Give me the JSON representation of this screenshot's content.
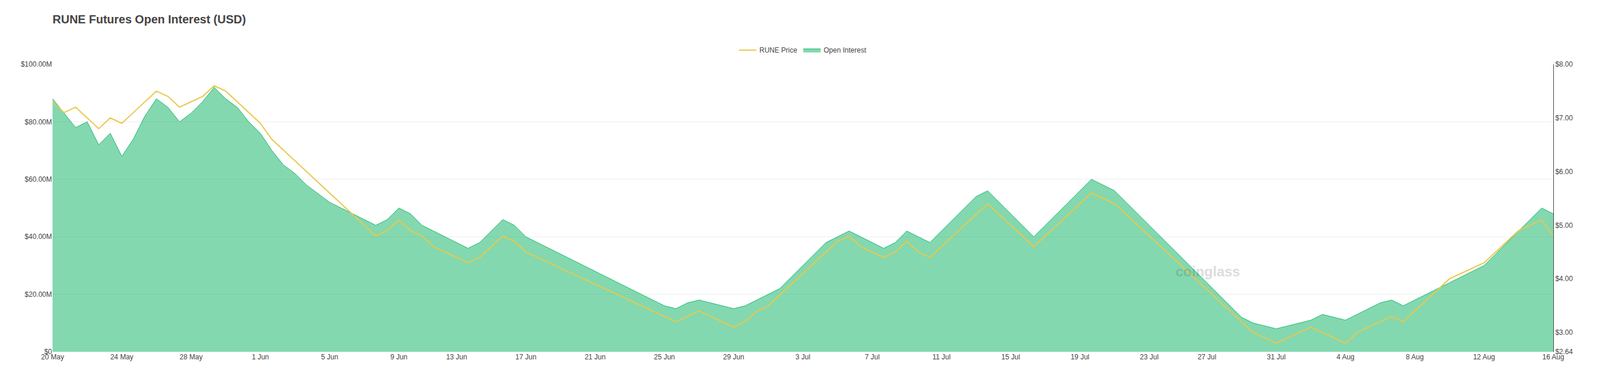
{
  "chart_data": {
    "type": "line",
    "title": "RUNE Futures Open Interest (USD)",
    "categories": [
      "20 May",
      null,
      null,
      null,
      null,
      null,
      "24 May",
      null,
      null,
      null,
      null,
      null,
      "28 May",
      null,
      null,
      null,
      null,
      null,
      "1 Jun",
      null,
      null,
      null,
      null,
      null,
      "5 Jun",
      null,
      null,
      null,
      null,
      null,
      "9 Jun",
      null,
      null,
      null,
      null,
      "13 Jun",
      null,
      null,
      null,
      null,
      null,
      "17 Jun",
      null,
      null,
      null,
      null,
      null,
      "21 Jun",
      null,
      null,
      null,
      null,
      null,
      "25 Jun",
      null,
      null,
      null,
      null,
      null,
      "29 Jun",
      null,
      null,
      null,
      null,
      null,
      "3 Jul",
      null,
      null,
      null,
      null,
      null,
      "7 Jul",
      null,
      null,
      null,
      null,
      null,
      "11 Jul",
      null,
      null,
      null,
      null,
      null,
      "15 Jul",
      null,
      null,
      null,
      null,
      null,
      "19 Jul",
      null,
      null,
      null,
      null,
      null,
      "23 Jul",
      null,
      null,
      null,
      null,
      "27 Jul",
      null,
      null,
      null,
      null,
      null,
      "31 Jul",
      null,
      null,
      null,
      null,
      null,
      "4 Aug",
      null,
      null,
      null,
      null,
      null,
      "8 Aug",
      null,
      null,
      null,
      null,
      null,
      "12 Aug",
      null,
      null,
      null,
      null,
      null,
      "16 Aug"
    ],
    "series": [
      {
        "name": "RUNE Price",
        "color": "#e8c84a",
        "axis": "y2",
        "type": "line",
        "values": [
          7.3,
          7.1,
          7.2,
          7.0,
          6.8,
          7.0,
          6.9,
          7.1,
          7.3,
          7.5,
          7.4,
          7.2,
          7.3,
          7.4,
          7.6,
          7.5,
          7.3,
          7.1,
          6.9,
          6.6,
          6.4,
          6.2,
          6.0,
          5.8,
          5.6,
          5.4,
          5.2,
          5.0,
          4.8,
          4.9,
          5.1,
          4.9,
          4.8,
          4.6,
          4.5,
          4.4,
          4.3,
          4.4,
          4.6,
          4.8,
          4.7,
          4.5,
          4.4,
          4.3,
          4.2,
          4.1,
          4.0,
          3.9,
          3.8,
          3.7,
          3.6,
          3.5,
          3.4,
          3.3,
          3.2,
          3.3,
          3.4,
          3.3,
          3.2,
          3.1,
          3.2,
          3.4,
          3.5,
          3.7,
          3.9,
          4.1,
          4.3,
          4.5,
          4.7,
          4.8,
          4.6,
          4.5,
          4.4,
          4.5,
          4.7,
          4.5,
          4.4,
          4.6,
          4.8,
          5.0,
          5.2,
          5.4,
          5.2,
          5.0,
          4.8,
          4.6,
          4.8,
          5.0,
          5.2,
          5.4,
          5.6,
          5.5,
          5.4,
          5.2,
          5.0,
          4.8,
          4.6,
          4.4,
          4.2,
          4.0,
          3.8,
          3.6,
          3.4,
          3.2,
          3.0,
          2.9,
          2.8,
          2.9,
          3.0,
          3.1,
          3.0,
          2.9,
          2.8,
          3.0,
          3.1,
          3.2,
          3.3,
          3.2,
          3.4,
          3.6,
          3.8,
          4.0,
          4.1,
          4.2,
          4.3,
          4.5,
          4.7,
          4.9,
          5.0,
          5.1,
          4.8
        ]
      },
      {
        "name": "Open Interest",
        "color": "#1db870",
        "type": "area",
        "values": [
          88000000,
          83000000,
          78000000,
          80000000,
          72000000,
          76000000,
          68000000,
          74000000,
          82000000,
          88000000,
          85000000,
          80000000,
          83000000,
          87000000,
          92000000,
          88000000,
          85000000,
          80000000,
          76000000,
          70000000,
          65000000,
          62000000,
          58000000,
          55000000,
          52000000,
          50000000,
          48000000,
          46000000,
          44000000,
          46000000,
          50000000,
          48000000,
          44000000,
          42000000,
          40000000,
          38000000,
          36000000,
          38000000,
          42000000,
          46000000,
          44000000,
          40000000,
          38000000,
          36000000,
          34000000,
          32000000,
          30000000,
          28000000,
          26000000,
          24000000,
          22000000,
          20000000,
          18000000,
          16000000,
          15000000,
          17000000,
          18000000,
          17000000,
          16000000,
          15000000,
          16000000,
          18000000,
          20000000,
          22000000,
          26000000,
          30000000,
          34000000,
          38000000,
          40000000,
          42000000,
          40000000,
          38000000,
          36000000,
          38000000,
          42000000,
          40000000,
          38000000,
          42000000,
          46000000,
          50000000,
          54000000,
          56000000,
          52000000,
          48000000,
          44000000,
          40000000,
          44000000,
          48000000,
          52000000,
          56000000,
          60000000,
          58000000,
          56000000,
          52000000,
          48000000,
          44000000,
          40000000,
          36000000,
          32000000,
          28000000,
          24000000,
          20000000,
          16000000,
          12000000,
          10000000,
          9000000,
          8000000,
          9000000,
          10000000,
          11000000,
          13000000,
          12000000,
          11000000,
          13000000,
          15000000,
          17000000,
          18000000,
          16000000,
          18000000,
          20000000,
          22000000,
          24000000,
          26000000,
          28000000,
          30000000,
          34000000,
          38000000,
          42000000,
          46000000,
          50000000,
          48000000
        ]
      }
    ],
    "ylim": [
      0,
      100000000
    ],
    "yticks": [
      {
        "value": 0,
        "label": "$0"
      },
      {
        "value": 20000000,
        "label": "$20.00M"
      },
      {
        "value": 40000000,
        "label": "$40.00M"
      },
      {
        "value": 60000000,
        "label": "$60.00M"
      },
      {
        "value": 80000000,
        "label": "$80.00M"
      },
      {
        "value": 100000000,
        "label": "$100.00M"
      }
    ],
    "y2lim": [
      2.64,
      8.0
    ],
    "y2ticks": [
      {
        "value": 2.64,
        "label": "$2.64"
      },
      {
        "value": 3.0,
        "label": "$3.00"
      },
      {
        "value": 4.0,
        "label": "$4.00"
      },
      {
        "value": 5.0,
        "label": "$5.00"
      },
      {
        "value": 6.0,
        "label": "$6.00"
      },
      {
        "value": 7.0,
        "label": "$7.00"
      },
      {
        "value": 8.0,
        "label": "$8.00"
      }
    ],
    "grid": true,
    "legend": "top",
    "annotations": [
      {
        "text": "coinglass"
      }
    ]
  }
}
